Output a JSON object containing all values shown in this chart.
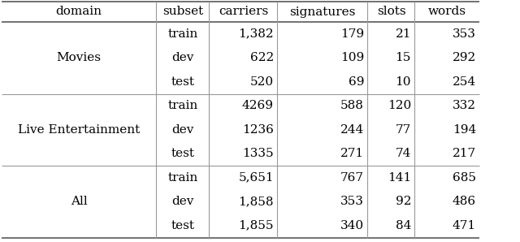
{
  "columns": [
    "domain",
    "subset",
    "carriers",
    "signatures",
    "slots",
    "words"
  ],
  "rows": [
    [
      "Movies",
      "train",
      "1,382",
      "179",
      "21",
      "353"
    ],
    [
      "Movies",
      "dev",
      "622",
      "109",
      "15",
      "292"
    ],
    [
      "Movies",
      "test",
      "520",
      "69",
      "10",
      "254"
    ],
    [
      "Live Entertainment",
      "train",
      "4269",
      "588",
      "120",
      "332"
    ],
    [
      "Live Entertainment",
      "dev",
      "1236",
      "244",
      "77",
      "194"
    ],
    [
      "Live Entertainment",
      "test",
      "1335",
      "271",
      "74",
      "217"
    ],
    [
      "All",
      "train",
      "5,651",
      "767",
      "141",
      "685"
    ],
    [
      "All",
      "dev",
      "1,858",
      "353",
      "92",
      "486"
    ],
    [
      "All",
      "test",
      "1,855",
      "340",
      "84",
      "471"
    ]
  ],
  "domain_row_map": {
    "Movies": [
      0,
      2
    ],
    "Live Entertainment": [
      3,
      5
    ],
    "All": [
      6,
      8
    ]
  },
  "col_aligns": [
    "center",
    "center",
    "right",
    "right",
    "right",
    "right"
  ],
  "line_color_thick": "#666666",
  "line_color_thin": "#999999",
  "bg_color": "#ffffff",
  "text_color": "#000000",
  "font_size": 11.0,
  "lw_thick": 1.3,
  "lw_thin": 0.8
}
